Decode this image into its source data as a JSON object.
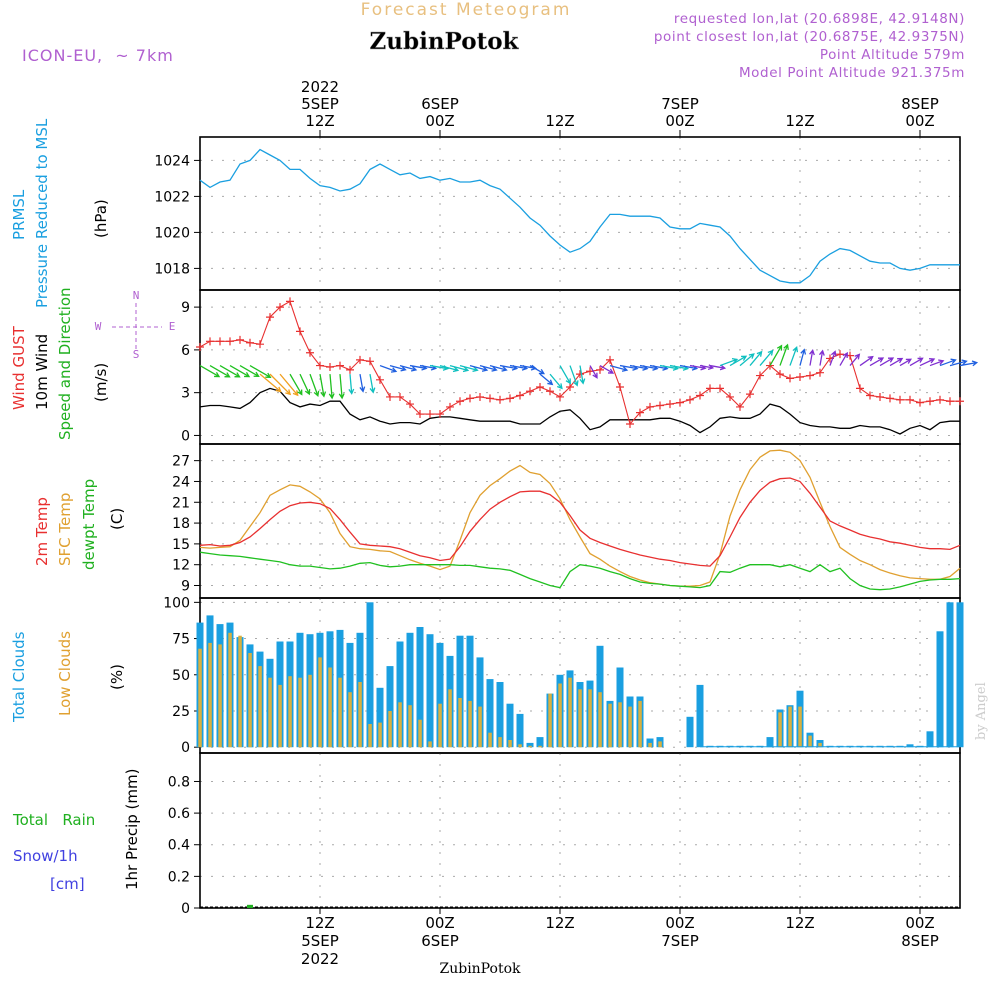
{
  "header": {
    "product_title": "Forecast Meteogram",
    "location": "ZubinPotok",
    "model": "ICON-EU,  ~ 7km",
    "requested_point": "requested lon,lat (20.6898E, 42.9148N)",
    "closest_point": "   point closest lon,lat (20.6875E, 42.9375N)",
    "point_altitude": "Point Altitude 579m",
    "model_point_altitude": "Model Point Altitude 921.375m",
    "footer_location": "ZubinPotok",
    "watermark": "by Angel"
  },
  "time_axis": {
    "top_labels": [
      {
        "line1": "2022",
        "line2": "5SEP",
        "line3": "12Z",
        "hour": 12
      },
      {
        "line1": "",
        "line2": "6SEP",
        "line3": "00Z",
        "hour": 24
      },
      {
        "line1": "",
        "line2": "",
        "line3": "12Z",
        "hour": 36
      },
      {
        "line1": "",
        "line2": "7SEP",
        "line3": "00Z",
        "hour": 48
      },
      {
        "line1": "",
        "line2": "",
        "line3": "12Z",
        "hour": 60
      },
      {
        "line1": "",
        "line2": "8SEP",
        "line3": "00Z",
        "hour": 72
      }
    ],
    "bottom_labels": [
      {
        "line1": "12Z",
        "line2": "5SEP",
        "line3": "2022",
        "hour": 12
      },
      {
        "line1": "00Z",
        "line2": "6SEP",
        "line3": "",
        "hour": 24
      },
      {
        "line1": "12Z",
        "line2": "",
        "line3": "",
        "hour": 36
      },
      {
        "line1": "00Z",
        "line2": "7SEP",
        "line3": "",
        "hour": 48
      },
      {
        "line1": "12Z",
        "line2": "",
        "line3": "",
        "hour": 60
      },
      {
        "line1": "00Z",
        "line2": "8SEP",
        "line3": "",
        "hour": 72
      }
    ]
  },
  "colors": {
    "pressure": "#1a9fe0",
    "gust": "#e83030",
    "wind": "#000000",
    "temp2m": "#e83030",
    "sfc": "#e0a030",
    "dewpt": "#20c020",
    "total_clouds": "#1a9fe0",
    "low_clouds": "#d8b040",
    "rain": "#20b020",
    "snow": "#4040e0",
    "label_purple": "#b060d0",
    "title_orange": "#e8c080"
  },
  "chart_data": [
    {
      "type": "line",
      "id": "pressure",
      "labels": [
        "PRMSL",
        "Pressure Reduced to MSL"
      ],
      "unit": "(hPa)",
      "x": [
        0,
        1,
        2,
        3,
        4,
        5,
        6,
        7,
        8,
        9,
        10,
        11,
        12,
        13,
        14,
        15,
        16,
        17,
        18,
        19,
        20,
        21,
        22,
        23,
        24,
        25,
        26,
        27,
        28,
        29,
        30,
        31,
        32,
        33,
        34,
        35,
        36,
        37,
        38,
        39,
        40,
        41,
        42,
        43,
        44,
        45,
        46,
        47,
        48,
        49,
        50,
        51,
        52,
        53,
        54,
        55,
        56,
        57,
        58,
        59,
        60,
        61,
        62,
        63,
        64,
        65,
        66,
        67,
        68,
        69,
        70,
        71,
        72,
        73,
        74,
        75,
        76
      ],
      "values": [
        1022.9,
        1022.5,
        1022.8,
        1022.9,
        1023.8,
        1024.0,
        1024.6,
        1024.3,
        1024.0,
        1023.5,
        1023.5,
        1023.0,
        1022.6,
        1022.5,
        1022.3,
        1022.4,
        1022.7,
        1023.5,
        1023.8,
        1023.5,
        1023.2,
        1023.3,
        1023.0,
        1023.1,
        1022.9,
        1023.0,
        1022.8,
        1022.8,
        1022.9,
        1022.6,
        1022.4,
        1021.9,
        1021.4,
        1020.8,
        1020.4,
        1019.8,
        1019.3,
        1018.9,
        1019.1,
        1019.5,
        1020.3,
        1021.0,
        1021.0,
        1020.9,
        1020.9,
        1020.9,
        1020.8,
        1020.3,
        1020.2,
        1020.2,
        1020.5,
        1020.4,
        1020.3,
        1019.8,
        1019.1,
        1018.5,
        1017.9,
        1017.6,
        1017.3,
        1017.2,
        1017.2,
        1017.6,
        1018.4,
        1018.8,
        1019.1,
        1019.0,
        1018.7,
        1018.4,
        1018.3,
        1018.3,
        1018.0,
        1017.9,
        1018.0,
        1018.2,
        1018.2,
        1018.2,
        1018.2
      ],
      "yticks": [
        1018,
        1020,
        1022,
        1024
      ],
      "ylim": [
        1016.8,
        1025.3
      ]
    },
    {
      "type": "line",
      "id": "wind",
      "labels": [
        "Wind GUST",
        "10m Wind",
        "Speed and Direction"
      ],
      "unit": "(m/s)",
      "compass": {
        "n": "N",
        "s": "S",
        "w": "W",
        "e": "E"
      },
      "x": [
        0,
        1,
        2,
        3,
        4,
        5,
        6,
        7,
        8,
        9,
        10,
        11,
        12,
        13,
        14,
        15,
        16,
        17,
        18,
        19,
        20,
        21,
        22,
        23,
        24,
        25,
        26,
        27,
        28,
        29,
        30,
        31,
        32,
        33,
        34,
        35,
        36,
        37,
        38,
        39,
        40,
        41,
        42,
        43,
        44,
        45,
        46,
        47,
        48,
        49,
        50,
        51,
        52,
        53,
        54,
        55,
        56,
        57,
        58,
        59,
        60,
        61,
        62,
        63,
        64,
        65,
        66,
        67,
        68,
        69,
        70,
        71,
        72,
        73,
        74,
        75,
        76
      ],
      "gust": [
        6.2,
        6.6,
        6.6,
        6.6,
        6.7,
        6.5,
        6.4,
        8.3,
        9.0,
        9.4,
        7.3,
        5.8,
        4.9,
        4.8,
        4.9,
        4.6,
        5.3,
        5.2,
        3.9,
        2.7,
        2.7,
        2.2,
        1.5,
        1.5,
        1.5,
        2.0,
        2.4,
        2.6,
        2.7,
        2.6,
        2.5,
        2.6,
        2.8,
        3.1,
        3.4,
        3.1,
        2.7,
        3.4,
        4.3,
        4.5,
        4.6,
        5.3,
        3.4,
        0.8,
        1.6,
        2.0,
        2.1,
        2.2,
        2.3,
        2.5,
        2.8,
        3.3,
        3.3,
        2.7,
        2.0,
        2.9,
        4.2,
        4.9,
        4.3,
        4.0,
        4.1,
        4.2,
        4.4,
        5.4,
        5.7,
        5.6,
        3.3,
        2.8,
        2.7,
        2.6,
        2.5,
        2.5,
        2.3,
        2.4,
        2.5,
        2.4,
        2.4
      ],
      "speed": [
        2.0,
        2.1,
        2.1,
        2.0,
        1.9,
        2.3,
        3.0,
        3.3,
        3.1,
        2.3,
        2.0,
        2.2,
        2.1,
        2.4,
        2.4,
        1.5,
        1.1,
        1.3,
        1.0,
        0.8,
        0.9,
        0.9,
        0.8,
        1.2,
        1.3,
        1.3,
        1.2,
        1.1,
        1.0,
        1.0,
        1.0,
        1.0,
        0.8,
        0.8,
        0.8,
        1.3,
        1.7,
        1.8,
        1.2,
        0.4,
        0.6,
        1.1,
        1.1,
        1.1,
        1.1,
        1.1,
        1.2,
        1.2,
        1.0,
        0.7,
        0.2,
        0.6,
        1.2,
        1.3,
        1.2,
        1.2,
        1.5,
        2.2,
        2.0,
        1.5,
        0.9,
        0.7,
        0.6,
        0.6,
        0.5,
        0.5,
        0.7,
        0.6,
        0.6,
        0.4,
        0.1,
        0.5,
        0.7,
        0.4,
        0.9,
        1.0,
        1.0
      ],
      "barb_direction_deg": [
        300,
        300,
        300,
        300,
        300,
        300,
        310,
        315,
        320,
        330,
        335,
        340,
        350,
        355,
        355,
        355,
        350,
        350,
        290,
        285,
        285,
        280,
        280,
        280,
        285,
        285,
        285,
        285,
        285,
        285,
        280,
        280,
        280,
        300,
        310,
        320,
        330,
        340,
        350,
        330,
        300,
        285,
        280,
        280,
        280,
        280,
        280,
        280,
        280,
        280,
        280,
        280,
        250,
        240,
        230,
        220,
        220,
        210,
        200,
        200,
        195,
        190,
        190,
        200,
        210,
        220,
        235,
        240,
        240,
        240,
        240,
        240,
        245,
        250,
        250,
        255,
        260
      ],
      "yticks": [
        0,
        3,
        6,
        9
      ],
      "ylim": [
        -0.6,
        10.2
      ]
    },
    {
      "type": "line",
      "id": "temperature",
      "labels": [
        "2m Temp",
        "SFC Temp",
        "dewpt Temp"
      ],
      "unit": "(C)",
      "x": [
        0,
        1,
        2,
        3,
        4,
        5,
        6,
        7,
        8,
        9,
        10,
        11,
        12,
        13,
        14,
        15,
        16,
        17,
        18,
        19,
        20,
        21,
        22,
        23,
        24,
        25,
        26,
        27,
        28,
        29,
        30,
        31,
        32,
        33,
        34,
        35,
        36,
        37,
        38,
        39,
        40,
        41,
        42,
        43,
        44,
        45,
        46,
        47,
        48,
        49,
        50,
        51,
        52,
        53,
        54,
        55,
        56,
        57,
        58,
        59,
        60,
        61,
        62,
        63,
        64,
        65,
        66,
        67,
        68,
        69,
        70,
        71,
        72,
        73,
        74,
        75,
        76
      ],
      "temp2m": [
        14.8,
        14.9,
        14.7,
        14.8,
        15.2,
        16.0,
        17.2,
        18.5,
        19.7,
        20.5,
        20.9,
        21.0,
        20.8,
        20.1,
        18.5,
        16.7,
        15.0,
        14.8,
        14.7,
        14.6,
        14.3,
        13.8,
        13.3,
        13.0,
        12.6,
        12.8,
        14.6,
        16.8,
        18.5,
        20.0,
        21.0,
        21.8,
        22.5,
        22.6,
        22.6,
        22.1,
        21.0,
        19.1,
        17.0,
        15.8,
        15.2,
        14.7,
        14.2,
        13.8,
        13.4,
        13.1,
        12.8,
        12.6,
        12.3,
        12.1,
        11.9,
        11.8,
        13.3,
        16.0,
        18.8,
        21.0,
        22.7,
        23.9,
        24.4,
        24.5,
        24.0,
        22.3,
        20.3,
        18.3,
        17.6,
        17.0,
        16.4,
        16.0,
        15.7,
        15.3,
        15.1,
        14.8,
        14.5,
        14.3,
        14.3,
        14.2,
        14.8
      ],
      "sfc": [
        14.5,
        14.4,
        14.5,
        14.6,
        15.5,
        17.5,
        19.5,
        22.0,
        22.8,
        23.5,
        23.3,
        22.5,
        21.5,
        19.5,
        16.5,
        14.6,
        14.3,
        14.2,
        14.0,
        13.9,
        13.3,
        12.7,
        12.2,
        11.8,
        11.3,
        11.8,
        15.5,
        19.5,
        22.0,
        23.4,
        24.4,
        25.5,
        26.3,
        25.3,
        25.0,
        23.7,
        21.5,
        18.5,
        16.0,
        13.6,
        12.8,
        11.8,
        11.0,
        10.3,
        9.8,
        9.4,
        9.2,
        9.0,
        8.9,
        8.9,
        9.0,
        9.5,
        13.5,
        19.0,
        22.8,
        25.7,
        27.5,
        28.4,
        28.5,
        28.2,
        27.0,
        24.6,
        21.0,
        17.5,
        14.5,
        13.5,
        12.6,
        12.0,
        11.3,
        10.8,
        10.4,
        10.1,
        10.0,
        9.9,
        9.9,
        10.3,
        11.5
      ],
      "dewpt": [
        13.8,
        13.6,
        13.4,
        13.3,
        13.2,
        13.0,
        12.8,
        12.6,
        12.4,
        12.0,
        11.8,
        11.8,
        11.6,
        11.4,
        11.5,
        11.8,
        12.2,
        12.3,
        11.9,
        11.7,
        11.8,
        12.0,
        12.0,
        12.0,
        12.0,
        12.0,
        11.9,
        11.9,
        11.7,
        11.5,
        11.4,
        11.2,
        10.6,
        10.0,
        9.5,
        9.0,
        8.7,
        11.0,
        12.0,
        11.8,
        11.5,
        11.0,
        10.6,
        10.0,
        9.5,
        9.3,
        9.2,
        9.0,
        8.9,
        8.8,
        8.7,
        9.0,
        11.0,
        10.9,
        11.5,
        12.0,
        12.0,
        12.0,
        11.7,
        12.0,
        11.5,
        11.0,
        12.0,
        11.0,
        11.5,
        10.0,
        9.0,
        8.5,
        8.4,
        8.5,
        8.8,
        9.2,
        9.6,
        9.8,
        9.9,
        9.9,
        10.0
      ],
      "yticks": [
        9,
        12,
        15,
        18,
        21,
        24,
        27
      ],
      "ylim": [
        7.2,
        29.4
      ]
    },
    {
      "type": "bar",
      "id": "clouds",
      "labels": [
        "Total Clouds",
        "Low Clouds"
      ],
      "unit": "(%)",
      "x": [
        0,
        1,
        2,
        3,
        4,
        5,
        6,
        7,
        8,
        9,
        10,
        11,
        12,
        13,
        14,
        15,
        16,
        17,
        18,
        19,
        20,
        21,
        22,
        23,
        24,
        25,
        26,
        27,
        28,
        29,
        30,
        31,
        32,
        33,
        34,
        35,
        36,
        37,
        38,
        39,
        40,
        41,
        42,
        43,
        44,
        45,
        46,
        47,
        48,
        49,
        50,
        51,
        52,
        53,
        54,
        55,
        56,
        57,
        58,
        59,
        60,
        61,
        62,
        63,
        64,
        65,
        66,
        67,
        68,
        69,
        70,
        71,
        72,
        73,
        74,
        75,
        76
      ],
      "total": [
        86,
        91,
        85,
        86,
        76,
        71,
        66,
        61,
        73,
        73,
        79,
        78,
        79,
        80,
        81,
        72,
        79,
        100,
        41,
        56,
        73,
        79,
        83,
        78,
        72,
        63,
        77,
        77,
        62,
        47,
        45,
        30,
        23,
        3,
        7,
        37,
        50,
        53,
        45,
        46,
        70,
        32,
        55,
        35,
        35,
        6,
        7,
        0,
        0,
        21,
        43,
        1,
        1,
        1,
        1,
        1,
        1,
        7,
        26,
        29,
        39,
        10,
        5,
        1,
        1,
        1,
        1,
        1,
        1,
        1,
        1,
        2,
        1,
        11,
        80,
        100,
        100
      ],
      "low": [
        68,
        72,
        71,
        79,
        77,
        65,
        56,
        48,
        43,
        49,
        48,
        50,
        62,
        55,
        48,
        38,
        45,
        16,
        17,
        25,
        31,
        29,
        19,
        4,
        30,
        40,
        34,
        32,
        28,
        10,
        7,
        5,
        2,
        1,
        1,
        37,
        44,
        48,
        40,
        40,
        38,
        30,
        31,
        28,
        32,
        3,
        4,
        0,
        0,
        0,
        0,
        0,
        0,
        0,
        0,
        0,
        0,
        0,
        24,
        28,
        28,
        8,
        3,
        0,
        0,
        0,
        0,
        0,
        0,
        0,
        0,
        0,
        0,
        0,
        0,
        0,
        0
      ],
      "yticks": [
        0,
        25,
        50,
        75,
        100
      ],
      "ylim": [
        -4,
        103
      ]
    },
    {
      "type": "bar",
      "id": "precip",
      "labels": [
        "Total   Rain",
        "Snow/1h",
        "[cm]"
      ],
      "ylabel": "1hr Precip (mm)",
      "x": [
        0,
        1,
        2,
        3,
        4,
        5,
        6,
        7,
        8,
        9,
        10,
        11,
        12,
        13,
        14,
        15,
        16,
        17,
        18,
        19,
        20,
        21,
        22,
        23,
        24,
        25,
        26,
        27,
        28,
        29,
        30,
        31,
        32,
        33,
        34,
        35,
        36,
        37,
        38,
        39,
        40,
        41,
        42,
        43,
        44,
        45,
        46,
        47,
        48,
        49,
        50,
        51,
        52,
        53,
        54,
        55,
        56,
        57,
        58,
        59,
        60,
        61,
        62,
        63,
        64,
        65,
        66,
        67,
        68,
        69,
        70,
        71,
        72,
        73,
        74,
        75,
        76
      ],
      "rain": [
        0,
        0,
        0,
        0,
        0,
        0.02,
        0,
        0,
        0,
        0,
        0,
        0,
        0,
        0,
        0,
        0,
        0,
        0,
        0,
        0,
        0,
        0,
        0,
        0,
        0,
        0,
        0,
        0,
        0,
        0,
        0,
        0,
        0,
        0,
        0,
        0,
        0,
        0,
        0,
        0,
        0,
        0,
        0,
        0,
        0,
        0,
        0,
        0,
        0,
        0,
        0,
        0,
        0,
        0,
        0,
        0,
        0,
        0,
        0,
        0,
        0,
        0,
        0,
        0,
        0,
        0,
        0,
        0,
        0,
        0,
        0,
        0,
        0,
        0,
        0,
        0,
        0
      ],
      "yticks": [
        0,
        0.2,
        0.4,
        0.6,
        0.8
      ],
      "ytick_labels": [
        "0",
        "0.2",
        "0.4",
        "0.6",
        "0.8"
      ],
      "ylim": [
        0,
        0.98
      ]
    }
  ]
}
